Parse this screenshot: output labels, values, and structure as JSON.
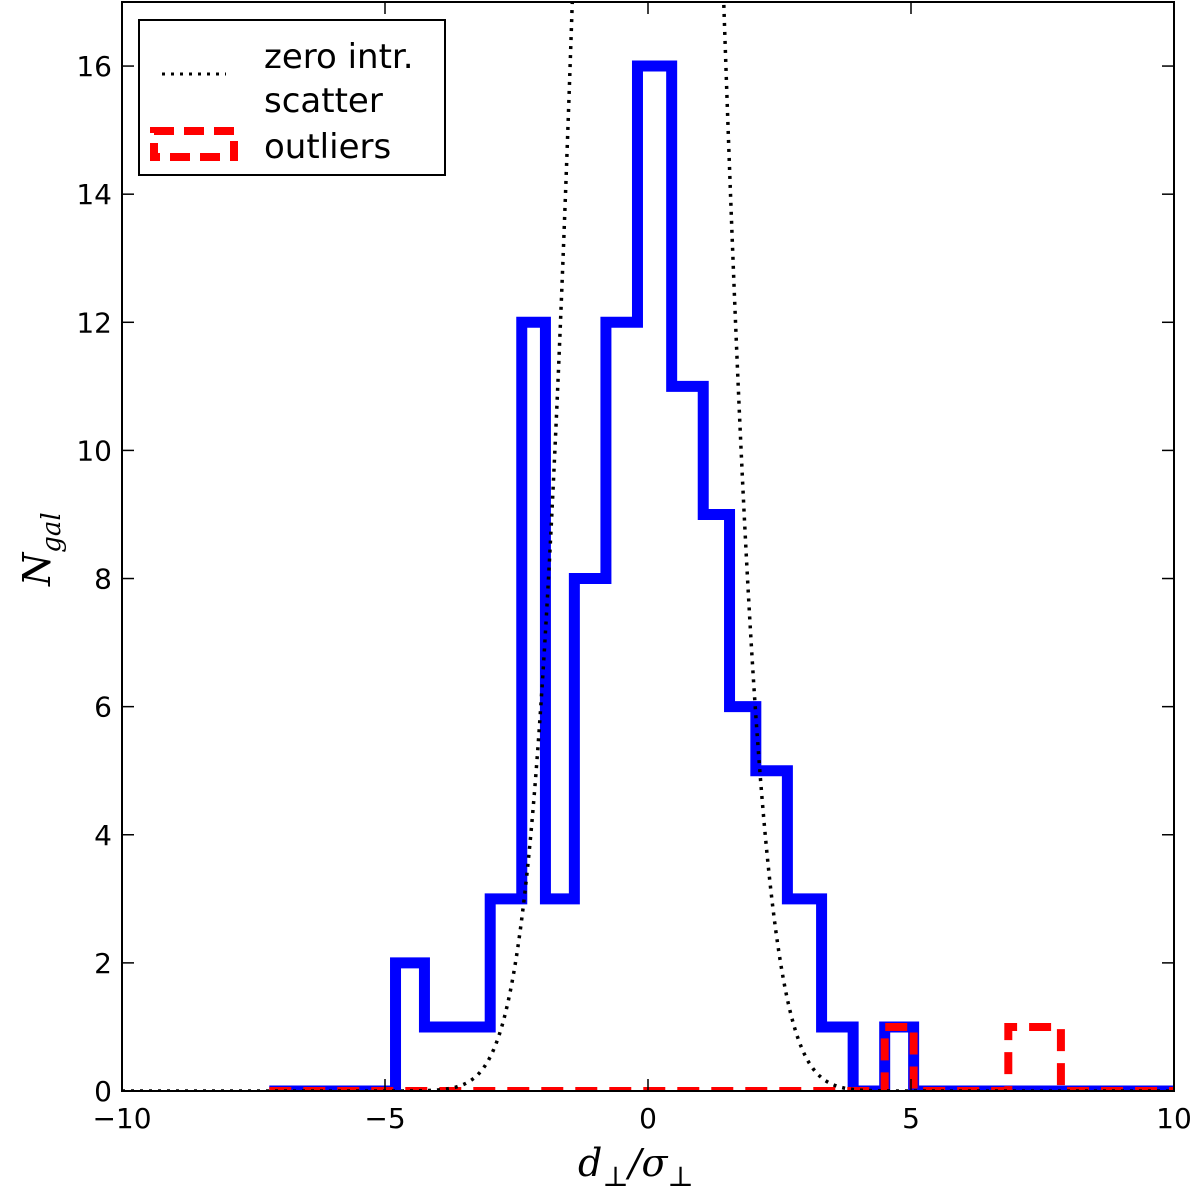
{
  "chart_data": {
    "type": "histogram",
    "xlim": [
      -10,
      10
    ],
    "ylim": [
      0,
      17
    ],
    "x_ticks": [
      -10,
      -5,
      0,
      5,
      10
    ],
    "x_tick_labels": [
      "−10",
      "−5",
      "0",
      "5",
      "10"
    ],
    "y_ticks": [
      0,
      2,
      4,
      6,
      8,
      10,
      12,
      14,
      16
    ],
    "y_tick_labels": [
      "0",
      "2",
      "4",
      "6",
      "8",
      "10",
      "12",
      "14",
      "16"
    ],
    "xlabel": {
      "main": "d",
      "sub1": "⊥",
      "slash": "/σ",
      "sub2": "⊥"
    },
    "ylabel": {
      "main": "N",
      "sub": "gal"
    },
    "legend": {
      "position": "top-left",
      "entries": [
        {
          "label_lines": [
            "zero intr.",
            "scatter"
          ],
          "style": "dotted",
          "color": "#000000"
        },
        {
          "label_lines": [
            "outliers"
          ],
          "style": "dashed-box",
          "color": "#ff0000"
        }
      ]
    },
    "series": [
      {
        "kind": "step-histogram",
        "color": "#0000ff",
        "edges": [
          -7.2,
          -4.8,
          -4.25,
          -3.7,
          -3.0,
          -2.4,
          -1.95,
          -1.4,
          -0.8,
          -0.2,
          0.45,
          1.05,
          1.55,
          2.05,
          2.65,
          3.3,
          3.9,
          4.35,
          4.5,
          5.05,
          7.0,
          10.0
        ],
        "counts": [
          0,
          2,
          1,
          1,
          3,
          12,
          3,
          8,
          12,
          16,
          11,
          9,
          6,
          5,
          3,
          1,
          0,
          0,
          1,
          0,
          0
        ]
      },
      {
        "kind": "step-histogram",
        "color": "#ff0000",
        "edges": [
          -7.2,
          4.5,
          5.05,
          6.85,
          7.85,
          10.0
        ],
        "counts": [
          0,
          1,
          0,
          1,
          0
        ]
      },
      {
        "kind": "gaussian-curve",
        "color": "#000000",
        "mu": 0,
        "sigma": 1,
        "peak": 47.9
      }
    ]
  }
}
